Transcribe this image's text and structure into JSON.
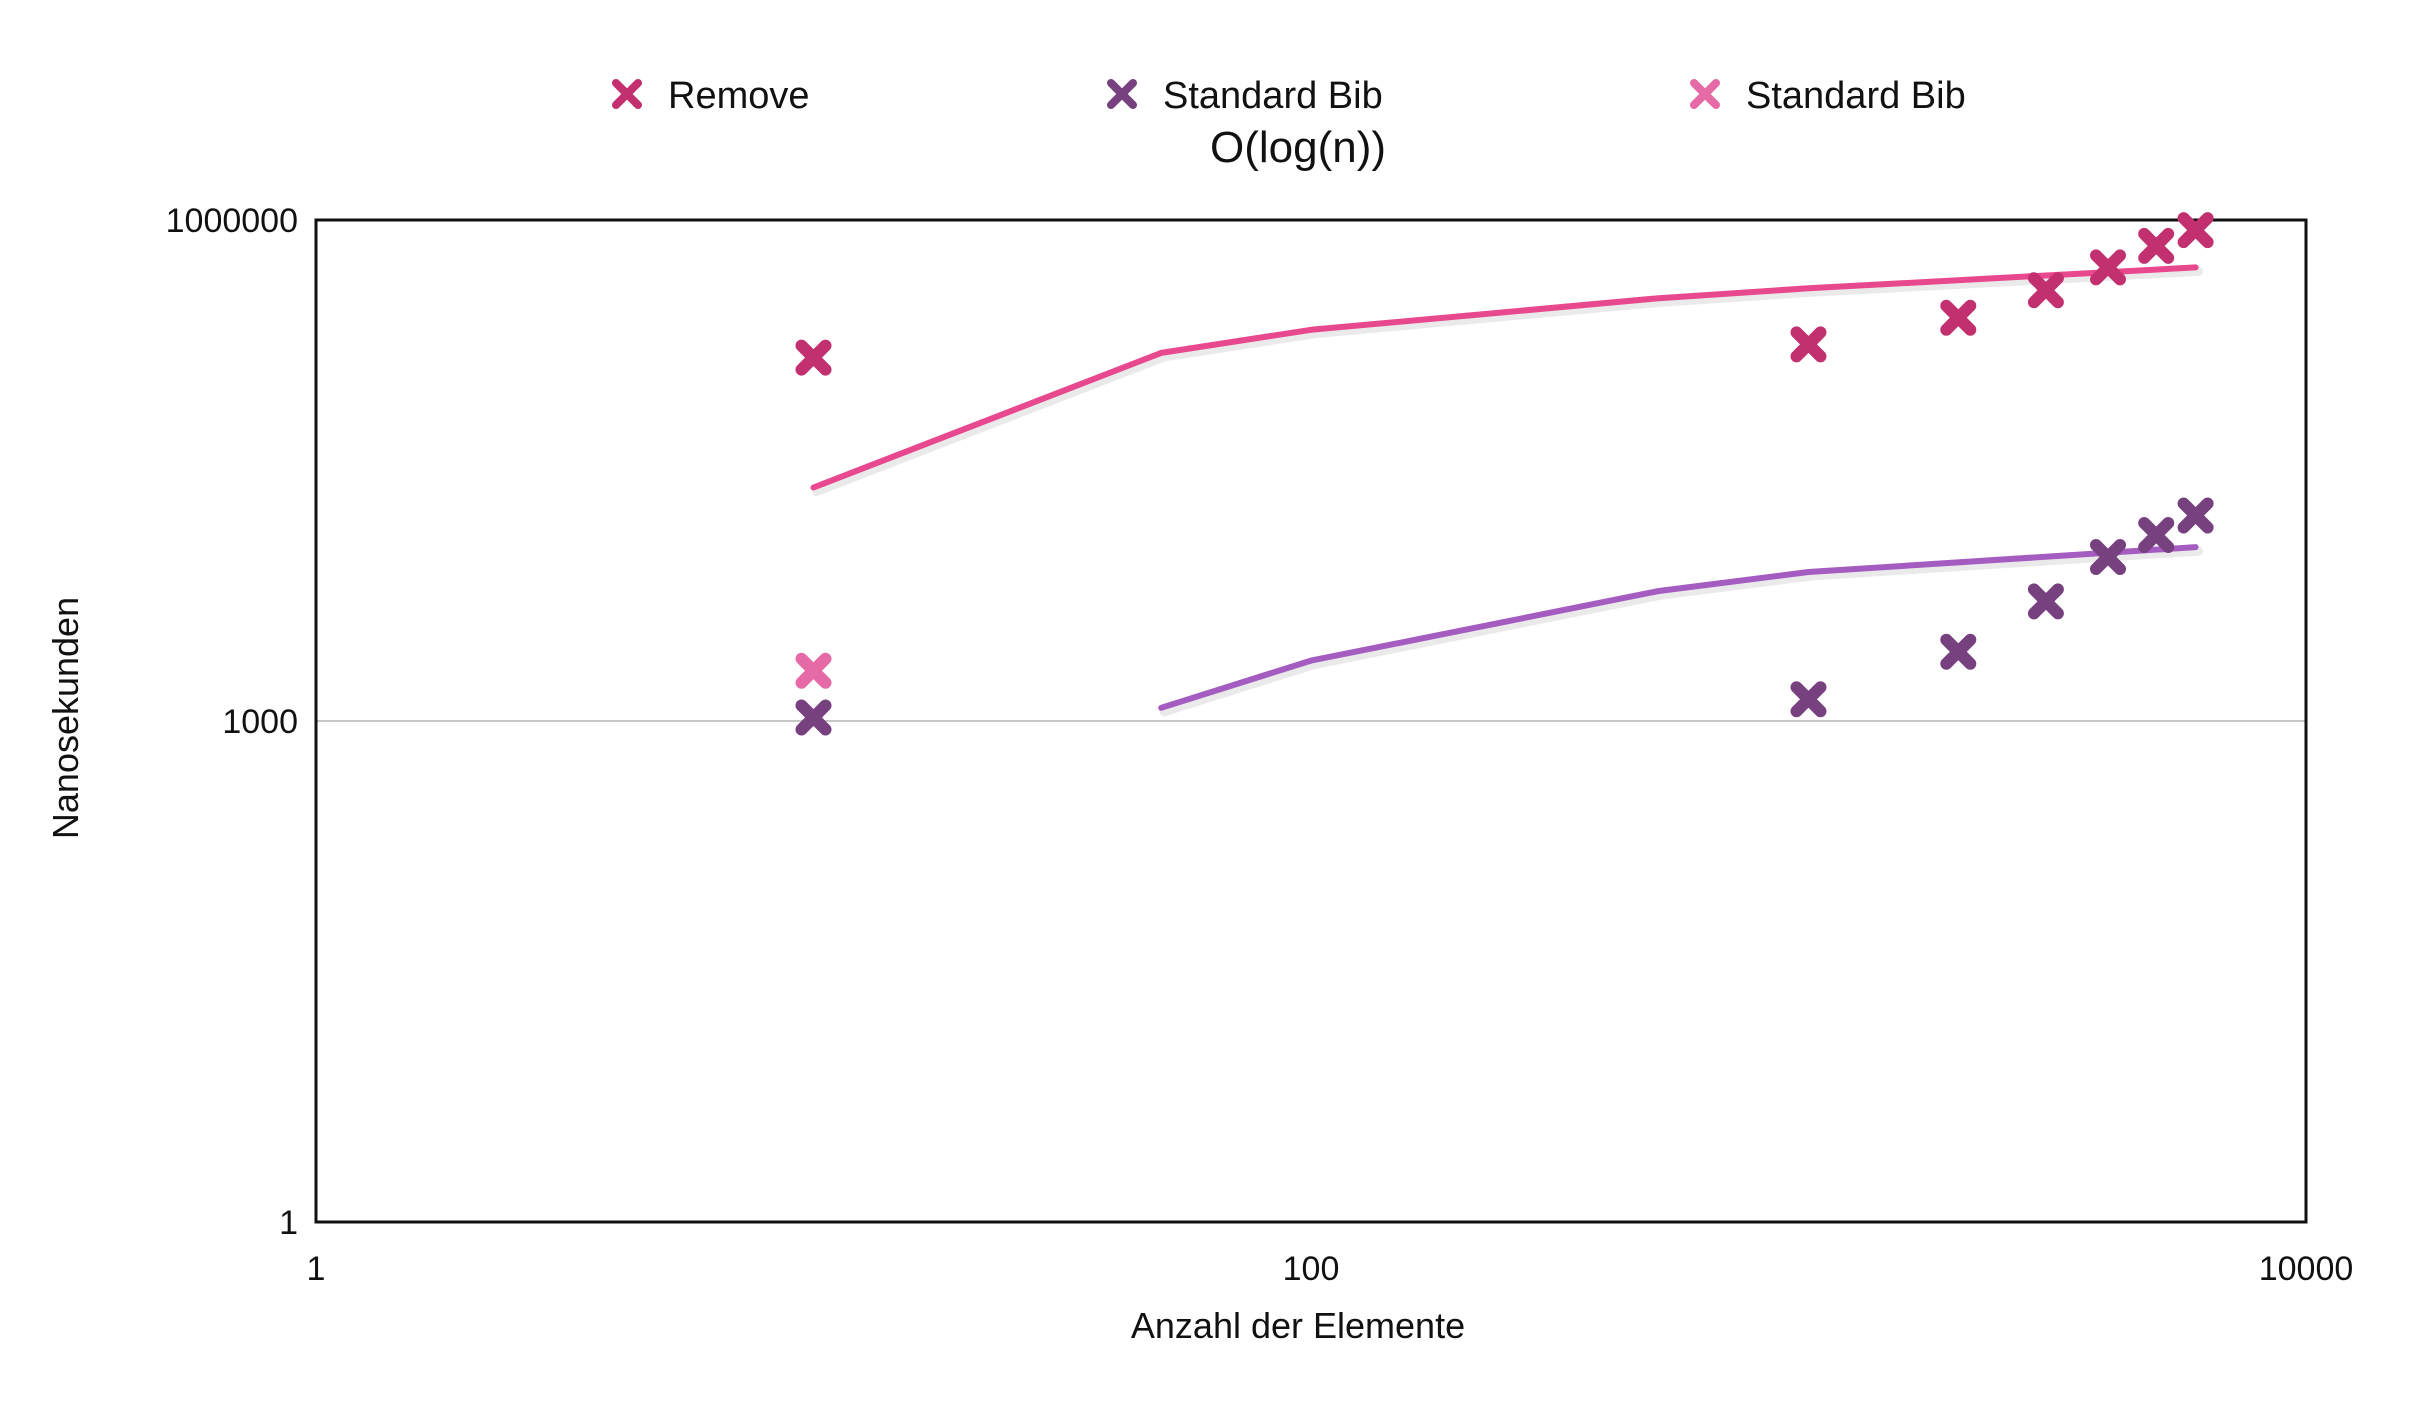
{
  "chart_data": {
    "type": "scatter",
    "title": "",
    "subtitle": "O(log(n))",
    "xlabel": "Anzahl der Elemente",
    "ylabel": "Nanosekunden",
    "x_scale": "log",
    "y_scale": "log",
    "xlim": [
      1,
      10000
    ],
    "ylim": [
      1,
      1000000
    ],
    "x_ticks": [
      {
        "value": 1,
        "label": "1"
      },
      {
        "value": 100,
        "label": "100"
      },
      {
        "value": 10000,
        "label": "10000"
      }
    ],
    "y_ticks": [
      {
        "value": 1,
        "label": "1"
      },
      {
        "value": 1000,
        "label": "1000"
      },
      {
        "value": 1000000,
        "label": "1000000"
      }
    ],
    "gridlines_y": [
      1000
    ],
    "legend": {
      "position": "top"
    },
    "series": [
      {
        "name": "Remove",
        "color": "#c2306f",
        "marker": "x",
        "points": [
          {
            "x": 10,
            "y": 150000
          },
          {
            "x": 1000,
            "y": 180000
          },
          {
            "x": 2000,
            "y": 260000
          },
          {
            "x": 3000,
            "y": 380000
          },
          {
            "x": 4000,
            "y": 520000
          },
          {
            "x": 5000,
            "y": 700000
          },
          {
            "x": 6000,
            "y": 870000
          }
        ]
      },
      {
        "name": "Standard Bib",
        "color": "#77407f",
        "marker": "x",
        "points": [
          {
            "x": 10,
            "y": 1050
          },
          {
            "x": 1000,
            "y": 1350
          },
          {
            "x": 2000,
            "y": 2600
          },
          {
            "x": 3000,
            "y": 5200
          },
          {
            "x": 4000,
            "y": 9600
          },
          {
            "x": 5000,
            "y": 13000
          },
          {
            "x": 6000,
            "y": 17000
          }
        ]
      },
      {
        "name": "Standard Bib",
        "color": "#e66aa5",
        "marker": "x",
        "points": [
          {
            "x": 10,
            "y": 2000
          }
        ]
      }
    ],
    "trendlines": [
      {
        "color": "#e8488e",
        "points": [
          {
            "x": 10,
            "y": 25000
          },
          {
            "x": 50,
            "y": 160000
          },
          {
            "x": 100,
            "y": 220000
          },
          {
            "x": 500,
            "y": 340000
          },
          {
            "x": 1000,
            "y": 390000
          },
          {
            "x": 6000,
            "y": 520000
          }
        ]
      },
      {
        "color": "#a45cc0",
        "points": [
          {
            "x": 50,
            "y": 1200
          },
          {
            "x": 100,
            "y": 2300
          },
          {
            "x": 500,
            "y": 6000
          },
          {
            "x": 1000,
            "y": 7800
          },
          {
            "x": 6000,
            "y": 11000
          }
        ]
      }
    ]
  }
}
